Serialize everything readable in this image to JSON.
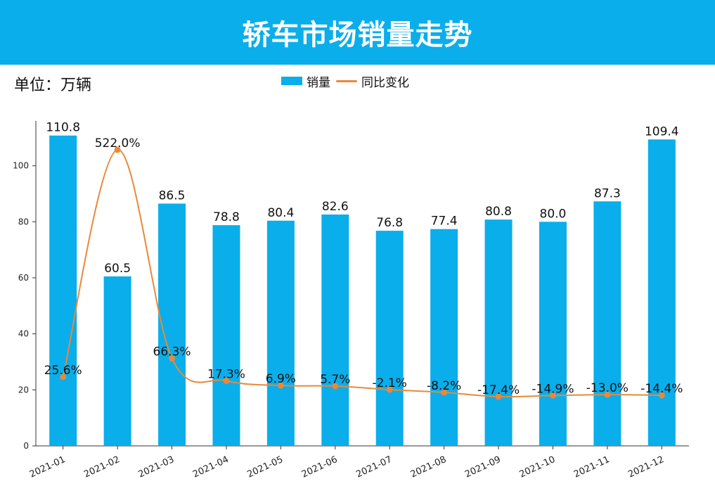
{
  "chart_data": {
    "type": "bar",
    "title": "轿车市场销量走势",
    "unit_label": "单位：万辆",
    "categories": [
      "2021-01",
      "2021-02",
      "2021-03",
      "2021-04",
      "2021-05",
      "2021-06",
      "2021-07",
      "2021-08",
      "2021-09",
      "2021-10",
      "2021-11",
      "2021-12"
    ],
    "series": [
      {
        "name": "销量",
        "type": "bar",
        "axis": "left",
        "values": [
          110.8,
          60.5,
          86.5,
          78.8,
          80.4,
          82.6,
          76.8,
          77.4,
          80.8,
          80.0,
          87.3,
          109.4
        ],
        "labels": [
          "110.8",
          "60.5",
          "86.5",
          "78.8",
          "80.4",
          "82.6",
          "76.8",
          "77.4",
          "80.8",
          "80.0",
          "87.3",
          "109.4"
        ]
      },
      {
        "name": "同比变化",
        "type": "line",
        "axis": "secondary",
        "values": [
          25.6,
          522.0,
          66.3,
          17.3,
          6.9,
          5.7,
          -2.1,
          -8.2,
          -17.4,
          -14.9,
          -13.0,
          -14.4
        ],
        "labels": [
          "25.6%",
          "522.0%",
          "66.3%",
          "17.3%",
          "6.9%",
          "5.7%",
          "-2.1%",
          "-8.2%",
          "-17.4%",
          "-14.9%",
          "-13.0%",
          "-14.4%"
        ]
      }
    ],
    "ylim": [
      0,
      116
    ],
    "yticks": [
      0,
      20,
      40,
      60,
      80,
      100
    ],
    "ytick_labels": [
      "0",
      "20",
      "40",
      "60",
      "80",
      "100"
    ],
    "secondary_ylim": [
      -125,
      585
    ],
    "legend_position": "top-center",
    "grid": false,
    "colors": {
      "bar": "#0aaeea",
      "line": "#e8893a",
      "title_bg": "#0aaeea"
    }
  }
}
